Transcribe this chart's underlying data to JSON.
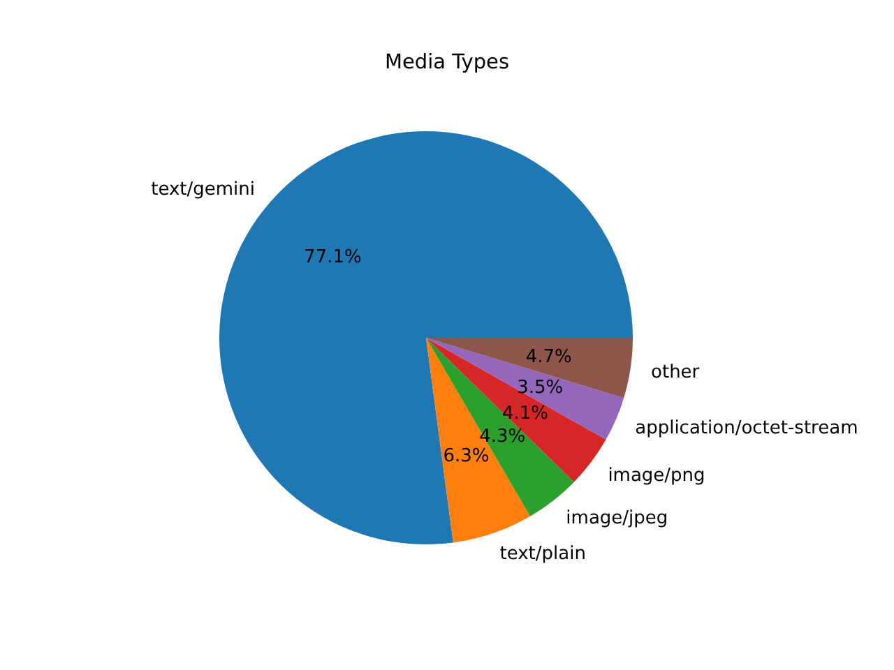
{
  "chart_data": {
    "type": "pie",
    "title": "Media Types",
    "categories": [
      "text/gemini",
      "text/plain",
      "image/jpeg",
      "image/png",
      "application/octet-stream",
      "other"
    ],
    "values": [
      77.1,
      6.3,
      4.3,
      4.1,
      3.5,
      4.7
    ],
    "colors": [
      "#1f77b4",
      "#ff7f0e",
      "#2ca02c",
      "#d62728",
      "#9467bd",
      "#8c564b"
    ],
    "value_labels": [
      "77.1%",
      "6.3%",
      "4.3%",
      "4.1%",
      "3.5%",
      "4.7%"
    ],
    "legend": false
  }
}
